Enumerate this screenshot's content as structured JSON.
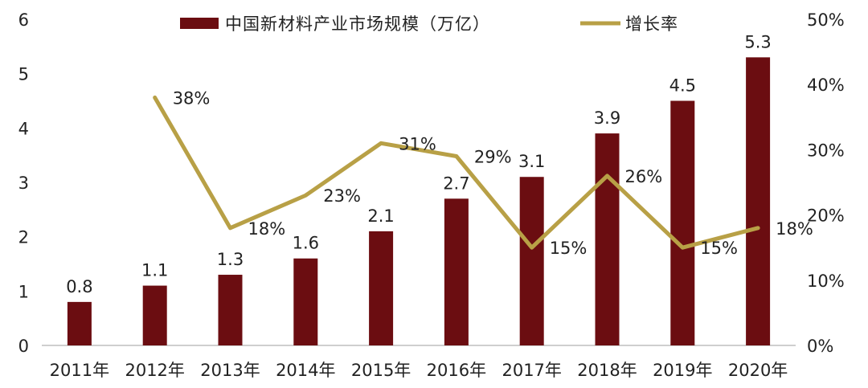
{
  "chart_data": {
    "type": "bar+line",
    "categories": [
      "2011年",
      "2012年",
      "2013年",
      "2014年",
      "2015年",
      "2016年",
      "2017年",
      "2018年",
      "2019年",
      "2020年"
    ],
    "series": [
      {
        "name": "中国新材料产业市场规模（万亿）",
        "type": "bar",
        "axis": "left",
        "color": "#6b0d11",
        "values": [
          0.8,
          1.1,
          1.3,
          1.6,
          2.1,
          2.7,
          3.1,
          3.9,
          4.5,
          5.3
        ],
        "labels": [
          "0.8",
          "1.1",
          "1.3",
          "1.6",
          "2.1",
          "2.7",
          "3.1",
          "3.9",
          "4.5",
          "5.3"
        ]
      },
      {
        "name": "增长率",
        "type": "line",
        "axis": "right",
        "color": "#b8a046",
        "values": [
          null,
          38,
          18,
          23,
          31,
          29,
          15,
          26,
          15,
          18
        ],
        "labels": [
          null,
          "38%",
          "18%",
          "23%",
          "31%",
          "29%",
          "15%",
          "26%",
          "15%",
          "18%"
        ]
      }
    ],
    "y_left": {
      "ylim": [
        0,
        6
      ],
      "ticks": [
        "0",
        "1",
        "2",
        "3",
        "4",
        "5",
        "6"
      ]
    },
    "y_right": {
      "ylim": [
        0,
        50
      ],
      "ticks": [
        "0%",
        "10%",
        "20%",
        "30%",
        "40%",
        "50%"
      ]
    },
    "legend": "top-center",
    "grid": false
  }
}
